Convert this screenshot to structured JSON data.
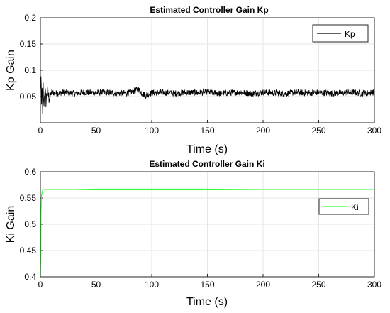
{
  "chart_data": [
    {
      "type": "line",
      "title": "Estimated Controller Gain Kp",
      "xlabel": "Time (s)",
      "ylabel": "Kp Gain",
      "xlim": [
        0,
        300
      ],
      "ylim": [
        0,
        0.2
      ],
      "xticks": [
        0,
        50,
        100,
        150,
        200,
        250,
        300
      ],
      "yticks": [
        0.05,
        0.1,
        0.15,
        0.2
      ],
      "xtick_labels": [
        "0",
        "50",
        "100",
        "150",
        "200",
        "250",
        "300"
      ],
      "ytick_labels": [
        "0.05",
        "0.1",
        "0.15",
        "0.2"
      ],
      "grid": true,
      "legend": "top-right",
      "series": [
        {
          "name": "Kp",
          "color": "#000000",
          "x": [
            0,
            0.5,
            1,
            1.5,
            2,
            2.5,
            3,
            4,
            5,
            6,
            8,
            10,
            15,
            20,
            30,
            40,
            50,
            60,
            70,
            80,
            88,
            90,
            95,
            100,
            110,
            120,
            130,
            140,
            150,
            160,
            170,
            180,
            190,
            200,
            210,
            220,
            230,
            240,
            250,
            260,
            270,
            280,
            290,
            300
          ],
          "values": [
            0.06,
            0.085,
            0.03,
            0.075,
            0.012,
            0.07,
            0.03,
            0.065,
            0.04,
            0.06,
            0.045,
            0.058,
            0.056,
            0.058,
            0.056,
            0.058,
            0.057,
            0.058,
            0.056,
            0.057,
            0.064,
            0.058,
            0.052,
            0.057,
            0.058,
            0.056,
            0.058,
            0.057,
            0.058,
            0.056,
            0.057,
            0.058,
            0.056,
            0.058,
            0.057,
            0.056,
            0.058,
            0.057,
            0.058,
            0.056,
            0.057,
            0.058,
            0.056,
            0.058
          ],
          "noise": 0.006
        }
      ]
    },
    {
      "type": "line",
      "title": "Estimated Controller Gain Ki",
      "xlabel": "Time (s)",
      "ylabel": "Ki Gain",
      "xlim": [
        0,
        300
      ],
      "ylim": [
        0.4,
        0.6
      ],
      "xticks": [
        0,
        50,
        100,
        150,
        200,
        250,
        300
      ],
      "yticks": [
        0.4,
        0.45,
        0.5,
        0.55,
        0.6
      ],
      "xtick_labels": [
        "0",
        "50",
        "100",
        "150",
        "200",
        "250",
        "300"
      ],
      "ytick_labels": [
        "0.4",
        "0.45",
        "0.5",
        "0.55",
        "0.6"
      ],
      "grid": true,
      "legend": "right",
      "series": [
        {
          "name": "Ki",
          "color": "#33ff33",
          "x": [
            0,
            0.2,
            0.5,
            1,
            2,
            3,
            5,
            10,
            30,
            50,
            75,
            100,
            150,
            200,
            250,
            300
          ],
          "values": [
            0.4,
            0.43,
            0.52,
            0.555,
            0.565,
            0.566,
            0.566,
            0.566,
            0.566,
            0.567,
            0.567,
            0.567,
            0.567,
            0.566,
            0.566,
            0.566
          ],
          "noise": 0
        }
      ]
    }
  ]
}
